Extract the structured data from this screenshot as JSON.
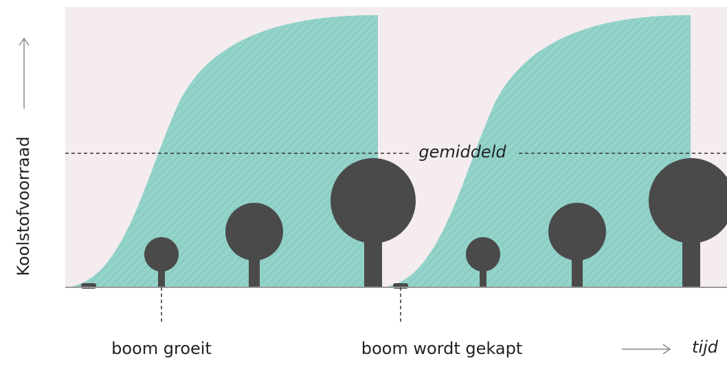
{
  "y_axis_label": "Koolstofvoorraad",
  "average_label": "gemiddeld",
  "annotations": [
    "boom groeit",
    "boom wordt gekapt"
  ],
  "x_axis_label": "tijd"
}
